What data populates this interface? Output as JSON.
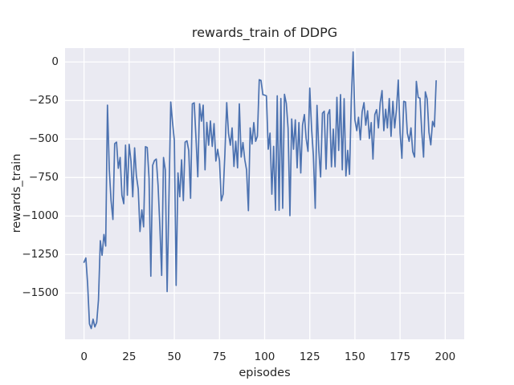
{
  "chart_data": {
    "type": "line",
    "title": "rewards_train of DDPG",
    "xlabel": "episodes",
    "ylabel": "rewards_train",
    "x_start": 0,
    "x_step": 1,
    "n_points": 196,
    "values": [
      -1300,
      -1272,
      -1440,
      -1700,
      -1730,
      -1670,
      -1720,
      -1690,
      -1545,
      -1160,
      -1255,
      -1120,
      -1195,
      -280,
      -700,
      -901,
      -1022,
      -530,
      -520,
      -690,
      -620,
      -865,
      -920,
      -540,
      -865,
      -535,
      -645,
      -875,
      -557,
      -738,
      -824,
      -1100,
      -960,
      -1070,
      -550,
      -555,
      -755,
      -1390,
      -670,
      -640,
      -630,
      -800,
      -1072,
      -1385,
      -620,
      -700,
      -1490,
      -900,
      -260,
      -390,
      -510,
      -1450,
      -720,
      -875,
      -635,
      -900,
      -520,
      -512,
      -575,
      -884,
      -272,
      -265,
      -490,
      -745,
      -272,
      -384,
      -280,
      -700,
      -392,
      -540,
      -383,
      -548,
      -400,
      -643,
      -567,
      -640,
      -901,
      -858,
      -600,
      -264,
      -462,
      -540,
      -428,
      -678,
      -515,
      -687,
      -272,
      -617,
      -523,
      -634,
      -700,
      -965,
      -428,
      -532,
      -393,
      -515,
      -482,
      -115,
      -120,
      -212,
      -215,
      -220,
      -566,
      -462,
      -858,
      -548,
      -962,
      -220,
      -962,
      -237,
      -950,
      -210,
      -270,
      -430,
      -997,
      -370,
      -566,
      -376,
      -687,
      -393,
      -720,
      -410,
      -341,
      -497,
      -580,
      -170,
      -436,
      -608,
      -950,
      -281,
      -574,
      -746,
      -333,
      -320,
      -695,
      -341,
      -310,
      -680,
      -436,
      -680,
      -229,
      -574,
      -212,
      -700,
      -238,
      -740,
      -574,
      -729,
      -250,
      65,
      -376,
      -446,
      -359,
      -505,
      -324,
      -264,
      -410,
      -317,
      -497,
      -393,
      -630,
      -341,
      -310,
      -428,
      -264,
      -186,
      -446,
      -307,
      -428,
      -237,
      -482,
      -255,
      -428,
      -307,
      -117,
      -462,
      -625,
      -255,
      -260,
      -462,
      -515,
      -428,
      -582,
      -617,
      -126,
      -230,
      -235,
      -455,
      -617,
      -194,
      -240,
      -455,
      -538,
      -386,
      -420,
      -122
    ],
    "xticks": [
      0,
      25,
      50,
      75,
      100,
      125,
      150,
      175,
      200
    ],
    "yticks": [
      0,
      -250,
      -500,
      -750,
      -1000,
      -1250,
      -1500
    ],
    "xlim": [
      -10.5,
      210.5
    ],
    "ylim": [
      -1800,
      90
    ],
    "grid": true,
    "legend": null,
    "line_color": "#4c72b0",
    "grid_color": "#ffffff",
    "axes_background": "#eaeaf2",
    "figure_background": "#ffffff",
    "text_color": "#262626"
  }
}
